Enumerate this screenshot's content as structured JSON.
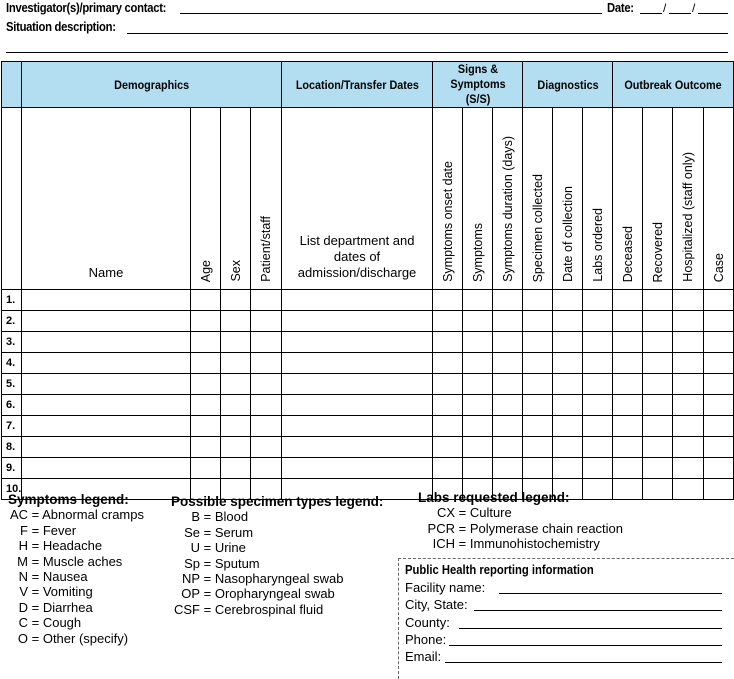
{
  "header": {
    "investigator_label": "Investigator(s)/primary contact:",
    "date_label": "Date:",
    "date_sep": "/",
    "situation_label": "Situation description:"
  },
  "table": {
    "groups": [
      "Demographics",
      "Location/Transfer Dates",
      "Signs & Symptoms (S/S)",
      "Diagnostics",
      "Outbreak Outcome"
    ],
    "columns": {
      "name": "Name",
      "age": "Age",
      "sex": "Sex",
      "patient_staff": "Patient/staff",
      "location": "List department and dates of admission/discharge",
      "onset": "Symptoms onset date",
      "symptoms": "Symptoms",
      "duration": "Symptoms duration (days)",
      "specimen": "Specimen collected",
      "collection_date": "Date of collection",
      "labs": "Labs ordered",
      "deceased": "Deceased",
      "recovered": "Recovered",
      "hospitalized": "Hospitalized (staff only)",
      "case": "Case"
    },
    "rows": [
      "1.",
      "2.",
      "3.",
      "4.",
      "5.",
      "6.",
      "7.",
      "8.",
      "9.",
      "10."
    ],
    "header_color": "#b3def2"
  },
  "symptoms_legend": {
    "title": "Symptoms legend:",
    "items": [
      [
        "AC",
        "Abnormal cramps"
      ],
      [
        "F",
        "Fever"
      ],
      [
        "H",
        "Headache"
      ],
      [
        "M",
        "Muscle aches"
      ],
      [
        "N",
        "Nausea"
      ],
      [
        "V",
        "Vomiting"
      ],
      [
        "D",
        "Diarrhea"
      ],
      [
        "C",
        "Cough"
      ],
      [
        "O",
        "Other (specify)"
      ]
    ]
  },
  "specimen_legend": {
    "title": "Possible specimen types legend:",
    "items": [
      [
        "B",
        "Blood"
      ],
      [
        "Se",
        "Serum"
      ],
      [
        "U",
        "Urine"
      ],
      [
        "Sp",
        "Sputum"
      ],
      [
        "NP",
        "Nasopharyngeal swab"
      ],
      [
        "OP",
        "Oropharyngeal swab"
      ],
      [
        "CSF",
        "Cerebrospinal fluid"
      ]
    ]
  },
  "labs_legend": {
    "title": "Labs requested legend:",
    "items": [
      [
        "CX",
        "Culture"
      ],
      [
        "PCR",
        "Polymerase chain reaction"
      ],
      [
        "ICH",
        "Immunohistochemistry"
      ]
    ]
  },
  "reporting": {
    "title": "Public Health reporting information",
    "fields": [
      "Facility name:",
      "City, State:",
      "County:",
      "Phone:",
      "Email:"
    ]
  }
}
